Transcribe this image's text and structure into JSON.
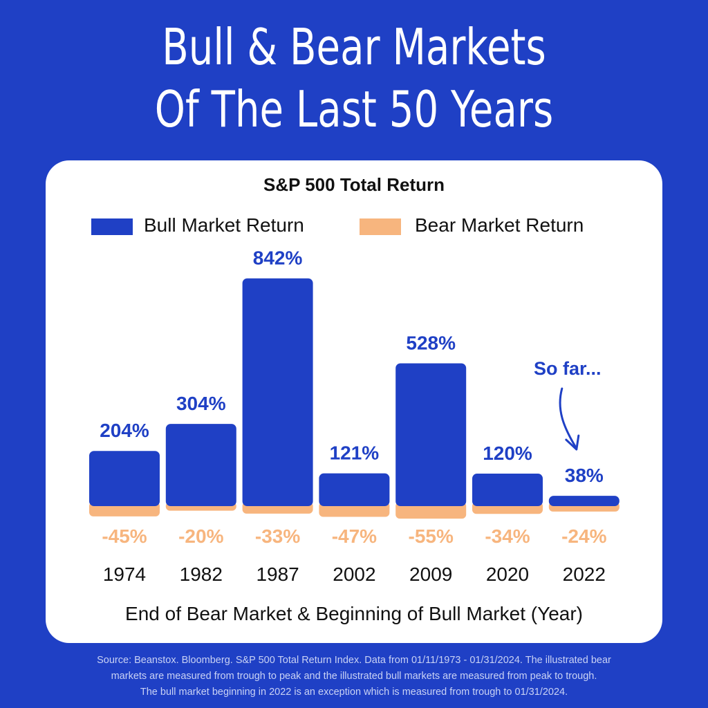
{
  "headline": {
    "line1": "Bull & Bear Markets",
    "line2": "Of The Last 50 Years"
  },
  "colors": {
    "background": "#1f40c5",
    "bull": "#1f40c5",
    "bear": "#f7b57e"
  },
  "chart_data": {
    "type": "bar",
    "title": "S&P 500 Total Return",
    "xlabel": "End of Bear Market & Beginning of Bull Market (Year)",
    "ylabel": "",
    "legend_placement": "top",
    "grid": false,
    "categories": [
      "1974",
      "1982",
      "1987",
      "2002",
      "2009",
      "2020",
      "2022"
    ],
    "series": [
      {
        "name": "Bull Market Return",
        "values": [
          204,
          304,
          842,
          121,
          528,
          120,
          38
        ],
        "labels": [
          "204%",
          "304%",
          "842%",
          "121%",
          "528%",
          "120%",
          "38%"
        ]
      },
      {
        "name": "Bear Market Return",
        "values": [
          -45,
          -20,
          -33,
          -47,
          -55,
          -34,
          -24
        ],
        "labels": [
          "-45%",
          "-20%",
          "-33%",
          "-47%",
          "-55%",
          "-34%",
          "-24%"
        ]
      }
    ],
    "annotation": {
      "text": "So far...",
      "target": "2022"
    }
  },
  "footnote": {
    "line1": "Source: Beanstox. Bloomberg. S&P 500 Total Return Index. Data from 01/11/1973 - 01/31/2024. The illustrated bear",
    "line2": "markets are measured from trough to peak and the illustrated bull markets are measured from peak to trough.",
    "line3": "The bull market beginning in 2022 is an exception which is measured from trough to 01/31/2024."
  }
}
